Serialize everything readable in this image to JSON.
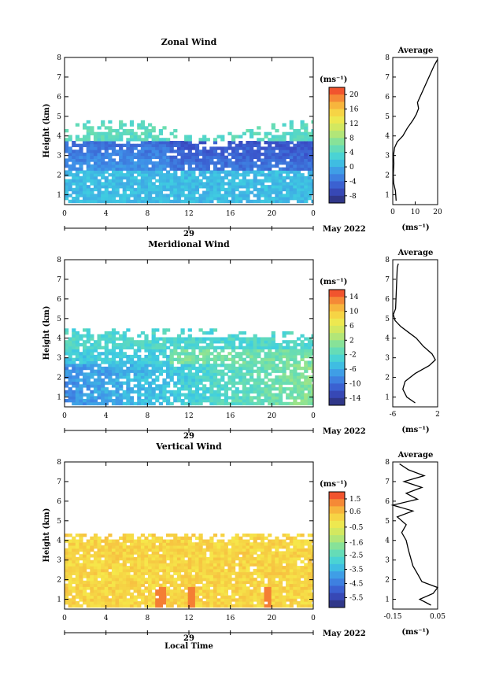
{
  "chart_data": [
    {
      "type": "heatmap",
      "title": "Zonal Wind",
      "ylabel": "Height (km)",
      "unit": "(ms⁻¹)",
      "xticks": [
        "0",
        "4",
        "8",
        "12",
        "16",
        "20",
        "0"
      ],
      "xlim": [
        0,
        24
      ],
      "ylim": [
        0.5,
        8
      ],
      "yticks": [
        "1",
        "2",
        "3",
        "4",
        "5",
        "6",
        "7",
        "8"
      ],
      "date_label": "29",
      "month_label": "May 2022",
      "colorbar": {
        "ticks": [
          "20",
          "16",
          "12",
          "8",
          "4",
          "0",
          "-4",
          "-8"
        ],
        "range": [
          -10,
          22
        ]
      },
      "average": {
        "title": "Average",
        "xticks": [
          "0",
          "10",
          "20"
        ],
        "xlim": [
          0,
          20
        ],
        "unit": "(ms⁻¹)",
        "profile": [
          [
            0.7,
            1.5
          ],
          [
            1.2,
            1.2
          ],
          [
            1.6,
            0.4
          ],
          [
            2.0,
            0.2
          ],
          [
            2.6,
            0.5
          ],
          [
            3.0,
            0.3
          ],
          [
            3.4,
            0.8
          ],
          [
            3.7,
            2.0
          ],
          [
            4.0,
            4.5
          ],
          [
            4.4,
            6.5
          ],
          [
            4.8,
            9.0
          ],
          [
            5.1,
            10.5
          ],
          [
            5.4,
            11.5
          ],
          [
            5.7,
            11.0
          ],
          [
            7.6,
            18.5
          ],
          [
            7.9,
            20.0
          ]
        ]
      }
    },
    {
      "type": "heatmap",
      "title": "Meridional Wind",
      "ylabel": "Height (km)",
      "unit": "(ms⁻¹)",
      "xticks": [
        "0",
        "4",
        "8",
        "12",
        "16",
        "20",
        "0"
      ],
      "xlim": [
        0,
        24
      ],
      "ylim": [
        0.5,
        8
      ],
      "yticks": [
        "1",
        "2",
        "3",
        "4",
        "5",
        "6",
        "7",
        "8"
      ],
      "date_label": "29",
      "month_label": "May 2022",
      "colorbar": {
        "ticks": [
          "14",
          "10",
          "6",
          "2",
          "-2",
          "-6",
          "-10",
          "-14"
        ],
        "range": [
          -16,
          16
        ]
      },
      "average": {
        "title": "Average",
        "xticks": [
          "-6",
          "2"
        ],
        "xlim": [
          -6,
          2
        ],
        "unit": "(ms⁻¹)",
        "profile": [
          [
            0.7,
            -2.0
          ],
          [
            1.0,
            -3.5
          ],
          [
            1.4,
            -4.2
          ],
          [
            1.8,
            -3.8
          ],
          [
            2.2,
            -2.0
          ],
          [
            2.6,
            0.5
          ],
          [
            2.9,
            1.6
          ],
          [
            3.2,
            1.0
          ],
          [
            3.6,
            -0.6
          ],
          [
            4.0,
            -1.8
          ],
          [
            4.3,
            -3.2
          ],
          [
            4.6,
            -4.6
          ],
          [
            4.9,
            -5.6
          ],
          [
            5.2,
            -5.9
          ],
          [
            5.5,
            -5.5
          ],
          [
            7.6,
            -5.2
          ],
          [
            7.8,
            -5.0
          ]
        ]
      }
    },
    {
      "type": "heatmap",
      "title": "Vertical Wind",
      "ylabel": "Height (km)",
      "xlabel": "Local Time",
      "unit": "(ms⁻¹)",
      "xticks": [
        "0",
        "4",
        "8",
        "12",
        "16",
        "20",
        "0"
      ],
      "xlim": [
        0,
        24
      ],
      "ylim": [
        0.5,
        8
      ],
      "yticks": [
        "1",
        "2",
        "3",
        "4",
        "5",
        "6",
        "7",
        "8"
      ],
      "date_label": "29",
      "month_label": "May 2022",
      "colorbar": {
        "ticks": [
          "1.5",
          "0.6",
          "-0.5",
          "-1.6",
          "-2.5",
          "-3.5",
          "-4.5",
          "-5.5"
        ],
        "range": [
          -6.2,
          2.0
        ]
      },
      "average": {
        "title": "Average",
        "xticks": [
          "-0.15",
          "0.05"
        ],
        "xlim": [
          -0.15,
          0.05
        ],
        "unit": "(ms⁻¹)",
        "profile": [
          [
            0.7,
            0.02
          ],
          [
            1.0,
            -0.03
          ],
          [
            1.3,
            0.03
          ],
          [
            1.6,
            0.05
          ],
          [
            1.9,
            -0.02
          ],
          [
            2.3,
            -0.04
          ],
          [
            2.7,
            -0.06
          ],
          [
            3.1,
            -0.07
          ],
          [
            3.5,
            -0.08
          ],
          [
            4.0,
            -0.09
          ],
          [
            4.4,
            -0.11
          ],
          [
            4.8,
            -0.09
          ],
          [
            5.2,
            -0.13
          ],
          [
            5.5,
            -0.06
          ],
          [
            5.8,
            -0.15
          ],
          [
            6.1,
            -0.04
          ],
          [
            6.4,
            -0.09
          ],
          [
            6.7,
            -0.02
          ],
          [
            7.0,
            -0.1
          ],
          [
            7.3,
            -0.01
          ],
          [
            7.6,
            -0.08
          ],
          [
            7.9,
            -0.12
          ]
        ]
      }
    }
  ]
}
